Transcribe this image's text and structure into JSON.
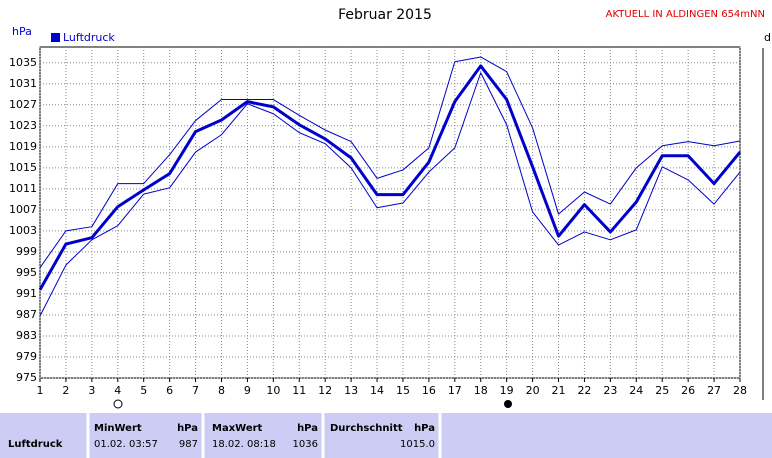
{
  "chart_data": {
    "type": "line",
    "title": "Februar 2015",
    "subtitle": "AKTUELL IN ALDINGEN 654mNN",
    "y_label": "hPa",
    "x": [
      1,
      2,
      3,
      4,
      5,
      6,
      7,
      8,
      9,
      10,
      11,
      12,
      13,
      14,
      15,
      16,
      17,
      18,
      19,
      20,
      21,
      22,
      23,
      24,
      25,
      26,
      27,
      28
    ],
    "xlim": [
      1,
      28
    ],
    "xticks": [
      1,
      2,
      3,
      4,
      5,
      6,
      7,
      8,
      9,
      10,
      11,
      12,
      13,
      14,
      15,
      16,
      17,
      18,
      19,
      20,
      21,
      22,
      23,
      24,
      25,
      26,
      27,
      28
    ],
    "ylim": [
      975,
      1038
    ],
    "yticks": [
      975,
      979,
      983,
      987,
      991,
      995,
      999,
      1003,
      1007,
      1011,
      1015,
      1019,
      1023,
      1027,
      1031,
      1035
    ],
    "grid": true,
    "legend": "top-left",
    "series": [
      {
        "name": "Luftdruck",
        "color": "#0000cc",
        "line_width": 3,
        "values": [
          991.8,
          1000.5,
          1001.7,
          1007.6,
          1010.8,
          1013.9,
          1021.9,
          1024.1,
          1027.6,
          1026.6,
          1023.2,
          1020.5,
          1016.9,
          1009.9,
          1009.9,
          1016.1,
          1027.6,
          1034.4,
          1028,
          1015.2,
          1002,
          1008,
          1002.8,
          1008.5,
          1017.3,
          1017.3,
          1012,
          1018
        ]
      },
      {
        "color": "#0000cc",
        "line_width": 1,
        "values": [
          996,
          1003,
          1003.8,
          1012,
          1012,
          1017.5,
          1024,
          1028,
          1028,
          1028,
          1025,
          1022.2,
          1020,
          1013,
          1014.6,
          1018.8,
          1035.2,
          1036.1,
          1033.3,
          1022.6,
          1006.2,
          1010.4,
          1008.1,
          1015,
          1019.2,
          1020,
          1019.2,
          1020.1
        ]
      },
      {
        "color": "#0000cc",
        "line_width": 1,
        "values": [
          986.8,
          996.5,
          1001.3,
          1004,
          1010,
          1011.2,
          1018,
          1021.3,
          1027.2,
          1025.3,
          1021.7,
          1019.6,
          1015,
          1007.4,
          1008.3,
          1014.2,
          1018.8,
          1033.1,
          1023.2,
          1006.6,
          1000.3,
          1002.8,
          1001.3,
          1003.2,
          1015.2,
          1012.7,
          1008.1,
          1014.2
        ]
      }
    ]
  },
  "table": {
    "header": [
      "MinWert",
      "hPa",
      "MaxWert",
      "hPa",
      "Durchschnitt",
      "hPa"
    ],
    "rows": [
      [
        "Luftdruck",
        "01.02.  03:57",
        "987",
        "18.02.  08:18",
        "1036",
        "1015.0"
      ]
    ]
  }
}
